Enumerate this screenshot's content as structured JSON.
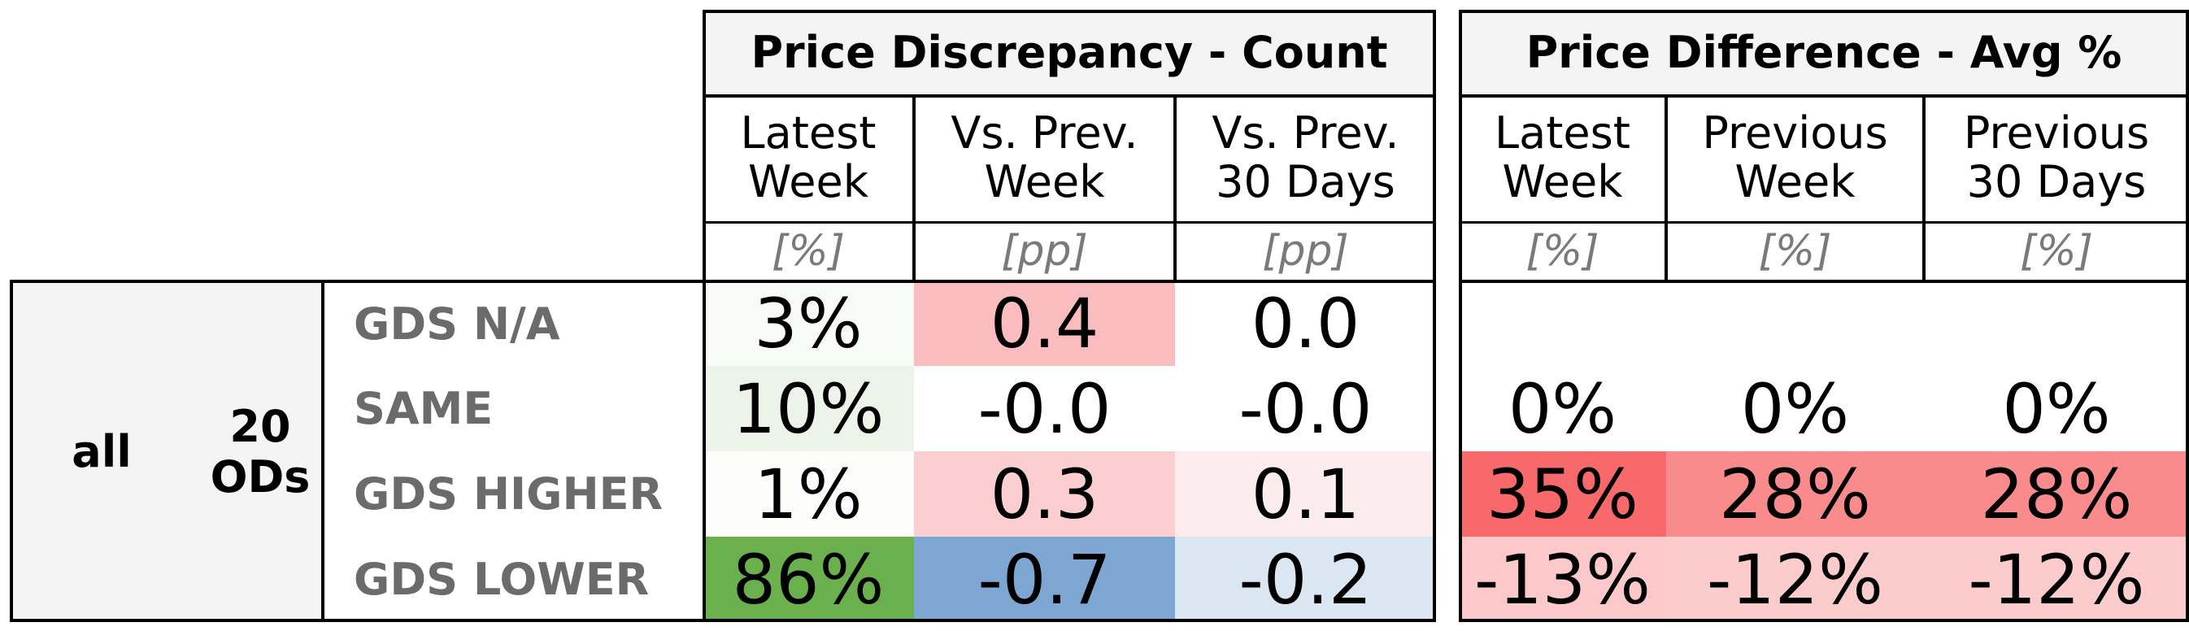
{
  "chart_data": {
    "type": "table",
    "scope": {
      "level1": "all",
      "level2": "20\nODs"
    },
    "row_labels": [
      "GDS N/A",
      "SAME",
      "GDS HIGHER",
      "GDS LOWER"
    ],
    "groups": [
      {
        "title": "Price Discrepancy - Count",
        "columns": [
          {
            "header": "Latest\nWeek",
            "unit": "[%]"
          },
          {
            "header": "Vs. Prev.\nWeek",
            "unit": "[pp]"
          },
          {
            "header": "Vs. Prev.\n30 Days",
            "unit": "[pp]"
          }
        ],
        "cells": [
          [
            {
              "text": "3%",
              "value": 3,
              "color": "#f7faf5"
            },
            {
              "text": "0.4",
              "value": 0.4,
              "color": "#fbbcbf"
            },
            {
              "text": "0.0",
              "value": 0.0,
              "color": "#ffffff"
            }
          ],
          [
            {
              "text": "10%",
              "value": 10,
              "color": "#ecf3e8"
            },
            {
              "text": "-0.0",
              "value": -0.0,
              "color": "#ffffff"
            },
            {
              "text": "-0.0",
              "value": -0.0,
              "color": "#ffffff"
            }
          ],
          [
            {
              "text": "1%",
              "value": 1,
              "color": "#fcfdfb"
            },
            {
              "text": "0.3",
              "value": 0.3,
              "color": "#fbcfd0"
            },
            {
              "text": "0.1",
              "value": 0.1,
              "color": "#fdeced"
            }
          ],
          [
            {
              "text": "86%",
              "value": 86,
              "color": "#6ab04c"
            },
            {
              "text": "-0.7",
              "value": -0.7,
              "color": "#7ea6d3"
            },
            {
              "text": "-0.2",
              "value": -0.2,
              "color": "#dae6f2"
            }
          ]
        ]
      },
      {
        "title": "Price Difference - Avg %",
        "columns": [
          {
            "header": "Latest\nWeek",
            "unit": "[%]"
          },
          {
            "header": "Previous\nWeek",
            "unit": "[%]"
          },
          {
            "header": "Previous\n30 Days",
            "unit": "[%]"
          }
        ],
        "cells": [
          [
            {
              "text": "",
              "value": null,
              "color": "#ffffff"
            },
            {
              "text": "",
              "value": null,
              "color": "#ffffff"
            },
            {
              "text": "",
              "value": null,
              "color": "#ffffff"
            }
          ],
          [
            {
              "text": "0%",
              "value": 0,
              "color": "#ffffff"
            },
            {
              "text": "0%",
              "value": 0,
              "color": "#ffffff"
            },
            {
              "text": "0%",
              "value": 0,
              "color": "#ffffff"
            }
          ],
          [
            {
              "text": "35%",
              "value": 35,
              "color": "#f8696b"
            },
            {
              "text": "28%",
              "value": 28,
              "color": "#f98b8d"
            },
            {
              "text": "28%",
              "value": 28,
              "color": "#f98b8d"
            }
          ],
          [
            {
              "text": "-13%",
              "value": -13,
              "color": "#fcc8c9"
            },
            {
              "text": "-12%",
              "value": -12,
              "color": "#fccbcc"
            },
            {
              "text": "-12%",
              "value": -12,
              "color": "#fccbcc"
            }
          ]
        ]
      }
    ]
  }
}
